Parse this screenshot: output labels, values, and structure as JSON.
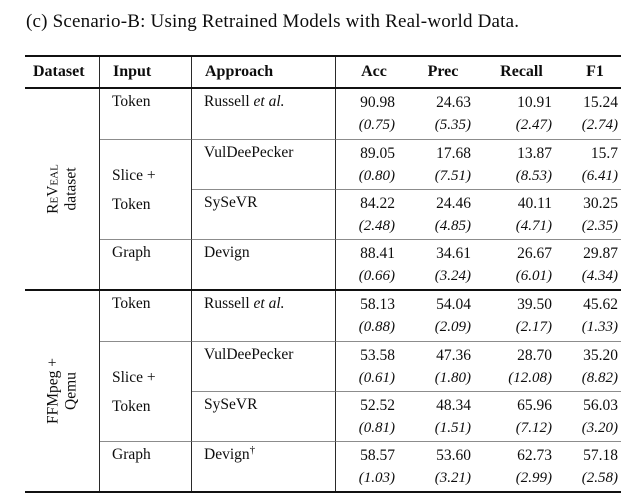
{
  "title": "(c) Scenario-B: Using Retrained Models with Real-world Data.",
  "table": {
    "headers": {
      "dataset": "Dataset",
      "input": "Input",
      "approach": "Approach",
      "acc": "Acc",
      "prec": "Prec",
      "recall": "Recall",
      "f1": "F1"
    },
    "sections": [
      {
        "dataset_lines": [
          "ReVeal",
          "dataset"
        ],
        "rows": [
          {
            "input_lines": [
              "Token"
            ],
            "approach": "Russell ",
            "approach_it": "et al.",
            "approach_sup": "",
            "acc": "90.98",
            "acc_sd": "(0.75)",
            "prec": "24.63",
            "prec_sd": "(5.35)",
            "recall": "10.91",
            "recall_sd": "(2.47)",
            "f1": "15.24",
            "f1_sd": "(2.74)"
          },
          {
            "input_lines": [
              "Slice +",
              "Token"
            ],
            "approach": "VulDeePecker",
            "approach_it": "",
            "approach_sup": "",
            "acc": "89.05",
            "acc_sd": "(0.80)",
            "prec": "17.68",
            "prec_sd": "(7.51)",
            "recall": "13.87",
            "recall_sd": "(8.53)",
            "f1": "15.7",
            "f1_sd": "(6.41)"
          },
          {
            "input_lines": [],
            "approach": "SySeVR",
            "approach_it": "",
            "approach_sup": "",
            "acc": "84.22",
            "acc_sd": "(2.48)",
            "prec": "24.46",
            "prec_sd": "(4.85)",
            "recall": "40.11",
            "recall_sd": "(4.71)",
            "f1": "30.25",
            "f1_sd": "(2.35)"
          },
          {
            "input_lines": [
              "Graph"
            ],
            "approach": "Devign",
            "approach_it": "",
            "approach_sup": "",
            "acc": "88.41",
            "acc_sd": "(0.66)",
            "prec": "34.61",
            "prec_sd": "(3.24)",
            "recall": "26.67",
            "recall_sd": "(6.01)",
            "f1": "29.87",
            "f1_sd": "(4.34)"
          }
        ]
      },
      {
        "dataset_lines": [
          "FFMpeg +",
          "Qemu"
        ],
        "rows": [
          {
            "input_lines": [
              "Token"
            ],
            "approach": "Russell ",
            "approach_it": "et al.",
            "approach_sup": "",
            "acc": "58.13",
            "acc_sd": "(0.88)",
            "prec": "54.04",
            "prec_sd": "(2.09)",
            "recall": "39.50",
            "recall_sd": "(2.17)",
            "f1": "45.62",
            "f1_sd": "(1.33)"
          },
          {
            "input_lines": [
              "Slice +",
              "Token"
            ],
            "approach": "VulDeePecker",
            "approach_it": "",
            "approach_sup": "",
            "acc": "53.58",
            "acc_sd": "(0.61)",
            "prec": "47.36",
            "prec_sd": "(1.80)",
            "recall": "28.70",
            "recall_sd": "(12.08)",
            "f1": "35.20",
            "f1_sd": "(8.82)"
          },
          {
            "input_lines": [],
            "approach": "SySeVR",
            "approach_it": "",
            "approach_sup": "",
            "acc": "52.52",
            "acc_sd": "(0.81)",
            "prec": "48.34",
            "prec_sd": "(1.51)",
            "recall": "65.96",
            "recall_sd": "(7.12)",
            "f1": "56.03",
            "f1_sd": "(3.20)"
          },
          {
            "input_lines": [
              "Graph"
            ],
            "approach": "Devign",
            "approach_it": "",
            "approach_sup": "†",
            "acc": "58.57",
            "acc_sd": "(1.03)",
            "prec": "53.60",
            "prec_sd": "(3.21)",
            "recall": "62.73",
            "recall_sd": "(2.99)",
            "f1": "57.18",
            "f1_sd": "(2.58)"
          }
        ]
      }
    ]
  }
}
